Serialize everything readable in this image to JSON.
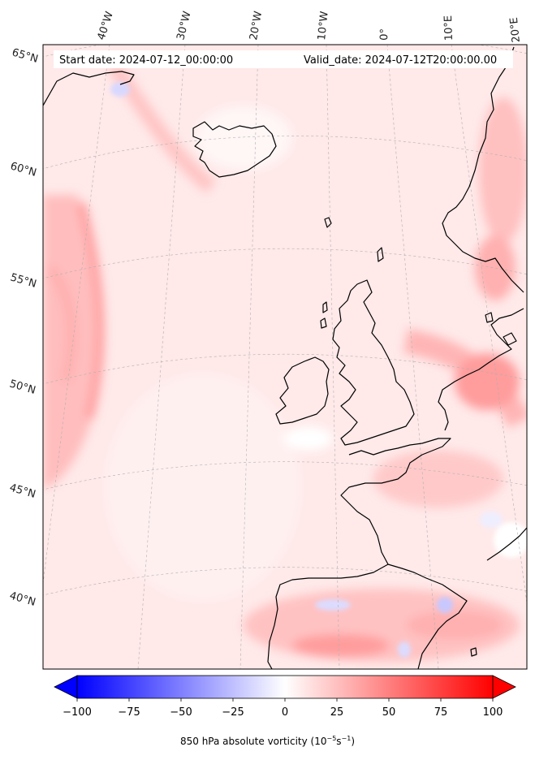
{
  "header": {
    "start_date": "Start date: 2024-07-12_00:00:00",
    "valid_date": "Valid_date: 2024-07-12T20:00:00.00"
  },
  "longitude_labels": [
    "40°W",
    "30°W",
    "20°W",
    "10°W",
    "0°",
    "10°E",
    "20°E"
  ],
  "latitude_labels": [
    "65°N",
    "60°N",
    "55°N",
    "50°N",
    "45°N",
    "40°N"
  ],
  "colorbar": {
    "ticks": [
      "−100",
      "−75",
      "−50",
      "−25",
      "0",
      "25",
      "50",
      "75",
      "100"
    ],
    "min": -100,
    "max": 100,
    "title_main": "850 hPa absolute vorticity (10",
    "title_exp1": "−5",
    "title_mid": "s",
    "title_exp2": "−1",
    "title_end": ")",
    "colors": {
      "low": "#0000ff",
      "mid": "#ffffff",
      "high": "#ff0000"
    }
  }
}
